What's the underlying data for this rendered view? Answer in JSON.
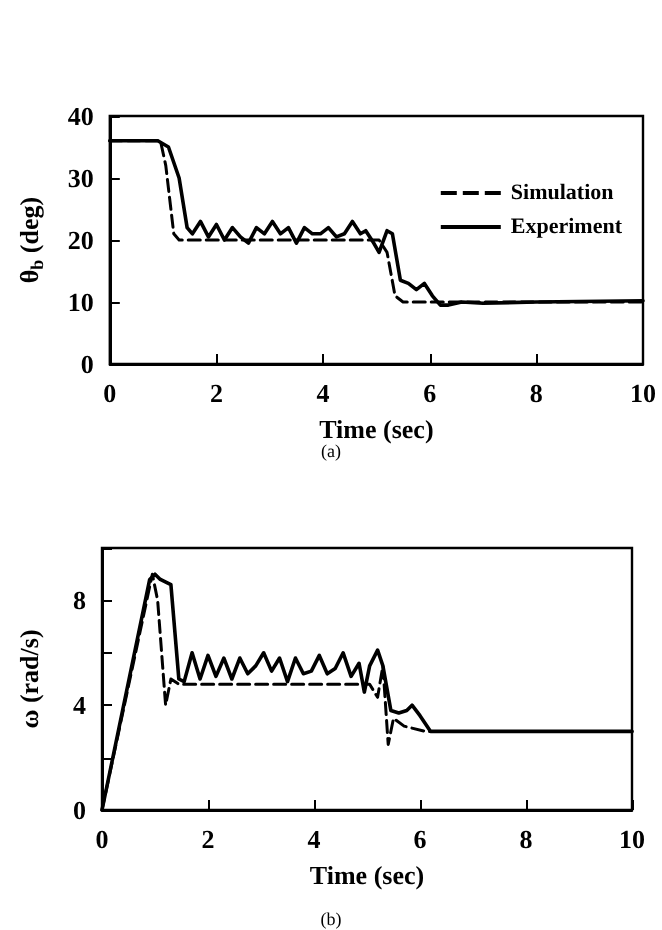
{
  "chart_data": [
    {
      "type": "line",
      "xlabel": "Time (sec)",
      "ylabel": "θ$_{b}$ (deg)",
      "annotations": [
        "(a)"
      ],
      "xlim": [
        0,
        10
      ],
      "xticks": [
        0,
        2,
        4,
        6,
        8,
        10
      ],
      "ylim": [
        0,
        40
      ],
      "yticks": [
        0,
        10,
        20,
        30,
        40
      ],
      "legend": "top right",
      "grid": false,
      "marker": "none",
      "series": [
        {
          "name": "Simulation",
          "color": "#000000",
          "line_style": "dashed",
          "x": [
            0,
            0.95,
            1.05,
            1.2,
            1.3,
            5.05,
            5.2,
            5.35,
            5.5,
            10
          ],
          "values": [
            36,
            36,
            32,
            21,
            20,
            20,
            18,
            11,
            10,
            10
          ]
        },
        {
          "name": "Experiment",
          "color": "#000000",
          "line_style": "solid",
          "x": [
            0,
            0.9,
            1.1,
            1.3,
            1.45,
            1.55,
            1.7,
            1.85,
            2.0,
            2.15,
            2.3,
            2.45,
            2.6,
            2.75,
            2.9,
            3.05,
            3.2,
            3.35,
            3.5,
            3.65,
            3.8,
            3.95,
            4.1,
            4.25,
            4.4,
            4.55,
            4.7,
            4.8,
            4.95,
            5.05,
            5.2,
            5.3,
            5.45,
            5.6,
            5.75,
            5.9,
            6.05,
            6.2,
            6.35,
            6.6,
            7,
            8,
            10
          ],
          "values": [
            36,
            36,
            35,
            30,
            22,
            21,
            23,
            20.5,
            22.5,
            20,
            22,
            20.5,
            19.5,
            22,
            21,
            23,
            21,
            22,
            19.5,
            22,
            21,
            21,
            22,
            20.5,
            21,
            23,
            21,
            21.5,
            19.5,
            18,
            21.5,
            21,
            13.5,
            13,
            12,
            13,
            11,
            9.5,
            9.5,
            10,
            9.8,
            10,
            10.2
          ]
        }
      ]
    },
    {
      "type": "line",
      "xlabel": "Time (sec)",
      "ylabel": "ω (rad/s)",
      "annotations": [
        "(b)"
      ],
      "xlim": [
        0,
        10
      ],
      "xticks": [
        0,
        2,
        4,
        6,
        8,
        10
      ],
      "ylim": [
        0,
        10
      ],
      "yticks": [
        0,
        {
          "value": 2,
          "label": null
        },
        4,
        {
          "value": 6,
          "label": null
        },
        8,
        {
          "value": 10,
          "label": null
        }
      ],
      "legend": false,
      "grid": false,
      "marker": "none",
      "series": [
        {
          "color": "#000000",
          "line_style": "dashed",
          "x": [
            0,
            0.95,
            1.05,
            1.2,
            1.3,
            1.45,
            5.05,
            5.2,
            5.3,
            5.4,
            5.5,
            5.7,
            6.1,
            10
          ],
          "values": [
            0,
            9,
            8,
            4,
            5,
            4.8,
            4.8,
            4.3,
            5.5,
            2.5,
            3.5,
            3.2,
            3,
            3
          ]
        },
        {
          "color": "#000000",
          "line_style": "solid",
          "x": [
            0,
            0.9,
            1.0,
            1.1,
            1.3,
            1.45,
            1.55,
            1.7,
            1.85,
            2.0,
            2.15,
            2.3,
            2.45,
            2.6,
            2.75,
            2.9,
            3.05,
            3.2,
            3.35,
            3.5,
            3.65,
            3.8,
            3.95,
            4.1,
            4.25,
            4.4,
            4.55,
            4.7,
            4.85,
            4.95,
            5.05,
            5.2,
            5.3,
            5.45,
            5.6,
            5.75,
            5.85,
            6.0,
            6.2,
            7,
            10
          ],
          "values": [
            0,
            8.8,
            9,
            8.8,
            8.6,
            5,
            4.9,
            6,
            5,
            5.9,
            5.1,
            5.8,
            5,
            5.8,
            5.2,
            5.5,
            6,
            5.3,
            5.8,
            4.9,
            5.8,
            5.2,
            5.3,
            5.9,
            5.2,
            5.4,
            6,
            5.1,
            5.6,
            4.5,
            5.5,
            6.1,
            5.5,
            3.8,
            3.7,
            3.8,
            4,
            3.6,
            3,
            3,
            3
          ]
        }
      ]
    }
  ]
}
